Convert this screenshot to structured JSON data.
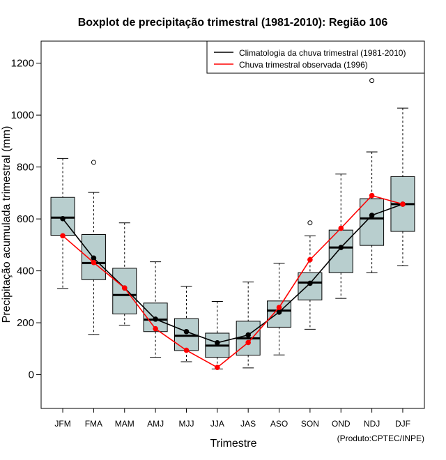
{
  "chart_data": {
    "type": "boxplot",
    "title": "Boxplot de precipitação trimestral (1981-2010): Região 106",
    "xlabel": "Trimestre",
    "ylabel": "Precipitação acumulada trimestral (mm)",
    "credit": "(Produto:CPTEC/INPE)",
    "ylim": [
      -130,
      1285
    ],
    "yticks": [
      0,
      200,
      400,
      600,
      800,
      1000,
      1200
    ],
    "categories": [
      "JFM",
      "FMA",
      "MAM",
      "AMJ",
      "MJJ",
      "JJA",
      "JAS",
      "ASO",
      "SON",
      "OND",
      "NDJ",
      "DJF"
    ],
    "boxes": [
      {
        "whisker_low": 332,
        "q1": 537,
        "median": 605,
        "q3": 683,
        "whisker_high": 833,
        "outliers": []
      },
      {
        "whisker_low": 155,
        "q1": 366,
        "median": 430,
        "q3": 540,
        "whisker_high": 702,
        "outliers": [
          818
        ]
      },
      {
        "whisker_low": 191,
        "q1": 234,
        "median": 307,
        "q3": 410,
        "whisker_high": 585,
        "outliers": []
      },
      {
        "whisker_low": 67,
        "q1": 166,
        "median": 212,
        "q3": 276,
        "whisker_high": 435,
        "outliers": []
      },
      {
        "whisker_low": 50,
        "q1": 93,
        "median": 150,
        "q3": 216,
        "whisker_high": 340,
        "outliers": []
      },
      {
        "whisker_low": 22,
        "q1": 67,
        "median": 112,
        "q3": 160,
        "whisker_high": 282,
        "outliers": []
      },
      {
        "whisker_low": 26,
        "q1": 75,
        "median": 140,
        "q3": 206,
        "whisker_high": 357,
        "outliers": []
      },
      {
        "whisker_low": 76,
        "q1": 183,
        "median": 247,
        "q3": 284,
        "whisker_high": 429,
        "outliers": []
      },
      {
        "whisker_low": 175,
        "q1": 288,
        "median": 355,
        "q3": 393,
        "whisker_high": 535,
        "outliers": [
          585
        ]
      },
      {
        "whisker_low": 294,
        "q1": 393,
        "median": 490,
        "q3": 557,
        "whisker_high": 773,
        "outliers": []
      },
      {
        "whisker_low": 393,
        "q1": 498,
        "median": 602,
        "q3": 678,
        "whisker_high": 858,
        "outliers": [
          1133
        ]
      },
      {
        "whisker_low": 420,
        "q1": 552,
        "median": 657,
        "q3": 763,
        "whisker_high": 1027,
        "outliers": []
      }
    ],
    "series": [
      {
        "name": "Climatologia da chuva trimestral (1981-2010)",
        "color": "#000000",
        "values": [
          601,
          449,
          334,
          214,
          166,
          123,
          153,
          241,
          352,
          490,
          614,
          657
        ]
      },
      {
        "name": "Chuva trimestral observada (1996)",
        "color": "#ff0000",
        "values": [
          535,
          432,
          334,
          177,
          94,
          28,
          124,
          259,
          443,
          564,
          690,
          657
        ]
      }
    ],
    "box_fill": "#b8cece",
    "legend_position": "top-right"
  }
}
